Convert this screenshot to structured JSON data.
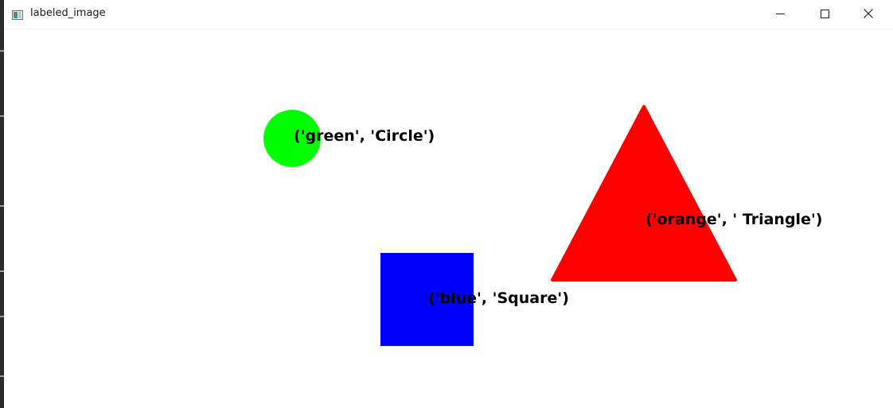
{
  "window": {
    "title": "labeled_image",
    "icons": {
      "app": "app-window-icon",
      "minimize": "minimize-icon",
      "maximize": "maximize-icon",
      "close": "close-icon"
    }
  },
  "shapes": [
    {
      "id": "circle",
      "color": "#00ff00",
      "label": "('green', 'Circle')"
    },
    {
      "id": "triangle",
      "color": "#ff0000",
      "label": "('orange', ' Triangle')"
    },
    {
      "id": "square",
      "color": "#0000ff",
      "label": "('blue', 'Square')"
    }
  ]
}
